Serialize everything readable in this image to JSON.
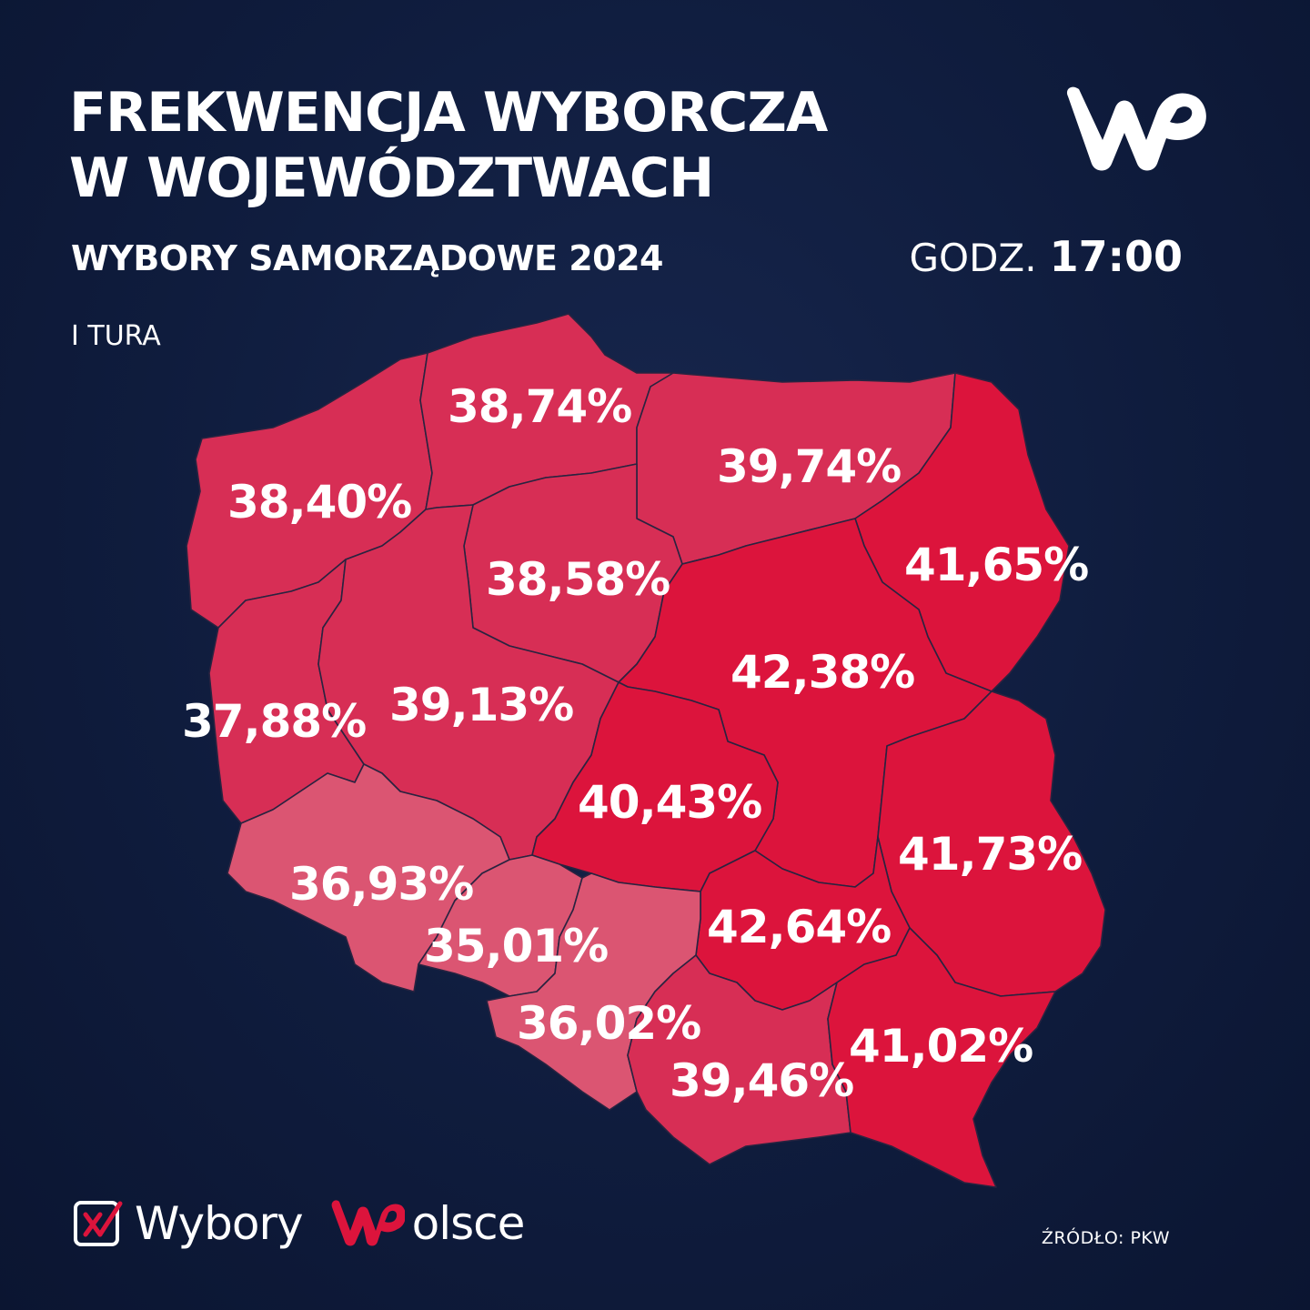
{
  "header": {
    "title_line1": "FREKWENCJA WYBORCZA",
    "title_line2": "W WOJEWÓDZTWACH",
    "subtitle": "WYBORY SAMORZĄDOWE  2024",
    "time_label": "GODZ.",
    "time_value": "17:00",
    "round": "I TURA"
  },
  "colors": {
    "background": "#0f1c3d",
    "high": "#dc143c",
    "medium": "#d72e55",
    "low": "#db5572",
    "text": "#ffffff"
  },
  "regions": [
    {
      "name": "zachodniopomorskie",
      "value": "38,40%",
      "color": "#d72e55"
    },
    {
      "name": "pomorskie",
      "value": "38,74%",
      "color": "#d72e55"
    },
    {
      "name": "warmińsko-mazurskie",
      "value": "39,74%",
      "color": "#d72e55"
    },
    {
      "name": "podlaskie",
      "value": "41,65%",
      "color": "#dc143c"
    },
    {
      "name": "kujawsko-pomorskie",
      "value": "38,58%",
      "color": "#d72e55"
    },
    {
      "name": "mazowieckie",
      "value": "42,38%",
      "color": "#dc143c"
    },
    {
      "name": "lubuskie",
      "value": "37,88%",
      "color": "#d72e55"
    },
    {
      "name": "wielkopolskie",
      "value": "39,13%",
      "color": "#d72e55"
    },
    {
      "name": "łódzkie",
      "value": "40,43%",
      "color": "#dc143c"
    },
    {
      "name": "lubelskie",
      "value": "41,73%",
      "color": "#dc143c"
    },
    {
      "name": "dolnośląskie",
      "value": "36,93%",
      "color": "#db5572"
    },
    {
      "name": "opolskie",
      "value": "35,01%",
      "color": "#db5572"
    },
    {
      "name": "świętokrzyskie",
      "value": "42,64%",
      "color": "#dc143c"
    },
    {
      "name": "śląskie",
      "value": "36,02%",
      "color": "#db5572"
    },
    {
      "name": "małopolskie",
      "value": "39,46%",
      "color": "#d72e55"
    },
    {
      "name": "podkarpackie",
      "value": "41,02%",
      "color": "#dc143c"
    }
  ],
  "footer": {
    "brand_word": "Wybory",
    "brand_word2": "olsce",
    "source": "ŹRÓDŁO: PKW"
  }
}
